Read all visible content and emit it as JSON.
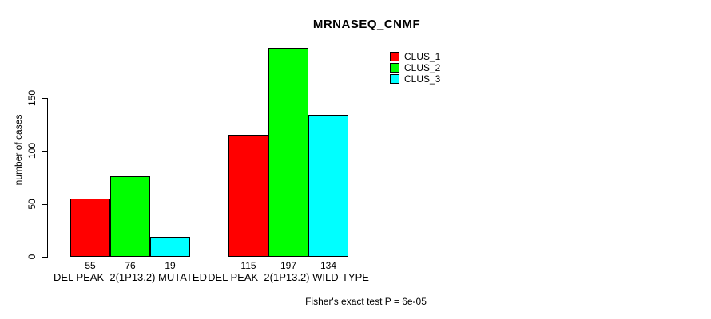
{
  "title": "MRNASEQ_CNMF",
  "footer": "Fisher's exact test P = 6e-05",
  "colors": {
    "clus_1": "#ff0000",
    "clus_2": "#00ff00",
    "clus_3": "#00ffff",
    "axis": "#000000",
    "background": "#ffffff"
  },
  "chart_data": {
    "type": "bar",
    "title": "MRNASEQ_CNMF",
    "categories": [
      "DEL PEAK  2(1P13.2) MUTATED",
      "DEL PEAK  2(1P13.2) WILD-TYPE"
    ],
    "series": [
      {
        "name": "CLUS_1",
        "color": "#ff0000",
        "values": [
          55,
          115
        ]
      },
      {
        "name": "CLUS_2",
        "color": "#00ff00",
        "values": [
          76,
          197
        ]
      },
      {
        "name": "CLUS_3",
        "color": "#00ffff",
        "values": [
          19,
          134
        ]
      }
    ],
    "bar_value_labels": [
      [
        "55",
        "76",
        "19"
      ],
      [
        "115",
        "197",
        "134"
      ]
    ],
    "xlabel": "",
    "ylabel": "number of cases",
    "yticks": [
      0,
      50,
      100,
      150
    ],
    "ylim": [
      0,
      150
    ],
    "grid": false,
    "legend_position": "top-right",
    "annotation": "Fisher's exact test P = 6e-05"
  }
}
